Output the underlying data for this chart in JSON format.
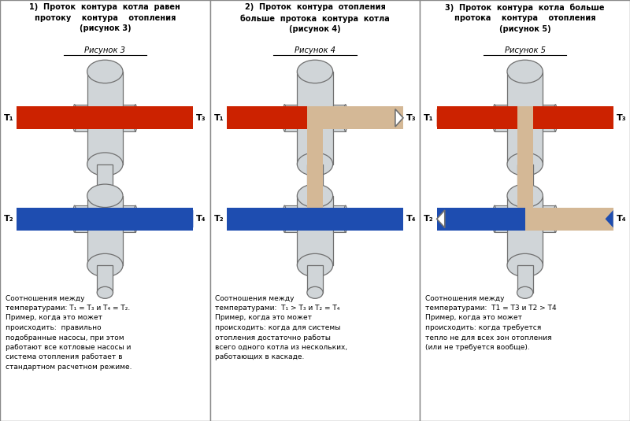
{
  "col_titles": [
    "1)  Проток  контура  котла  равен\nпротоку    контура    отопления\n(рисунок 3)",
    "2)  Проток  контура  отопления\nбольше  протока  контура  котла\n(рисунок 4)",
    "3)  Проток  контура  котла  больше\nпротока    контура    отопления\n(рисунок 5)"
  ],
  "fig_labels": [
    "Рисунок 3",
    "Рисунок 4",
    "Рисунок 5"
  ],
  "descriptions": [
    "Соотношения между\nтемпературами: T₁ = T₃ и T₄ = T₂.\nПример, когда это может\nпроисходить:  правильно\nподобранные насосы, при этом\nработают все котловые насосы и\nсистема отопления работает в\nстандартном расчетном режиме.",
    "Соотношения между\nтемпературами:  T₁ > T₃ и T₂ = T₄\nПример, когда это может\nпроисходить: когда для системы\nотопления достаточно работы\nвсего одного котла из нескольких,\nработающих в каскаде.",
    "Соотношения между\nтемпературами:  T1 = T3 и T2 > T4\nПример, когда это может\nпроисходить: когда требуется\nтепло не для всех зон отопления\n(или не требуется вообще)."
  ],
  "red_color": "#CC2200",
  "blue_color": "#1E4DB0",
  "beige_color": "#D4B896",
  "body_color": "#D0D5D8",
  "border_color": "#707070",
  "bg_color": "#FFFFFF",
  "separator_color": "#888888",
  "text_color": "#000000"
}
